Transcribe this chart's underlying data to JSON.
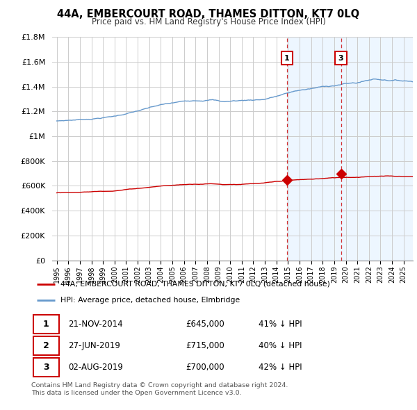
{
  "title": "44A, EMBERCOURT ROAD, THAMES DITTON, KT7 0LQ",
  "subtitle": "Price paid vs. HM Land Registry's House Price Index (HPI)",
  "legend_red": "44A, EMBERCOURT ROAD, THAMES DITTON, KT7 0LQ (detached house)",
  "legend_blue": "HPI: Average price, detached house, Elmbridge",
  "table": [
    {
      "num": "1",
      "date": "21-NOV-2014",
      "price": "£645,000",
      "hpi": "41% ↓ HPI"
    },
    {
      "num": "2",
      "date": "27-JUN-2019",
      "price": "£715,000",
      "hpi": "40% ↓ HPI"
    },
    {
      "num": "3",
      "date": "02-AUG-2019",
      "price": "£700,000",
      "hpi": "42% ↓ HPI"
    }
  ],
  "footnote1": "Contains HM Land Registry data © Crown copyright and database right 2024.",
  "footnote2": "This data is licensed under the Open Government Licence v3.0.",
  "red_color": "#cc0000",
  "blue_color": "#6699cc",
  "blue_fill": "#ddeeff",
  "background_color": "#ffffff",
  "grid_color": "#cccccc",
  "vline1_x": 2014.92,
  "vline3_x": 2019.58,
  "sale1_x": 2014.92,
  "sale1_y": 645000,
  "sale2_x": 2019.5,
  "sale2_y": 715000,
  "sale3_x": 2019.58,
  "sale3_y": 700000,
  "ylim_top": 1800000,
  "yticks": [
    0,
    200000,
    400000,
    600000,
    800000,
    1000000,
    1200000,
    1400000,
    1600000,
    1800000
  ],
  "xlim_left": 1994.6,
  "xlim_right": 2025.8
}
